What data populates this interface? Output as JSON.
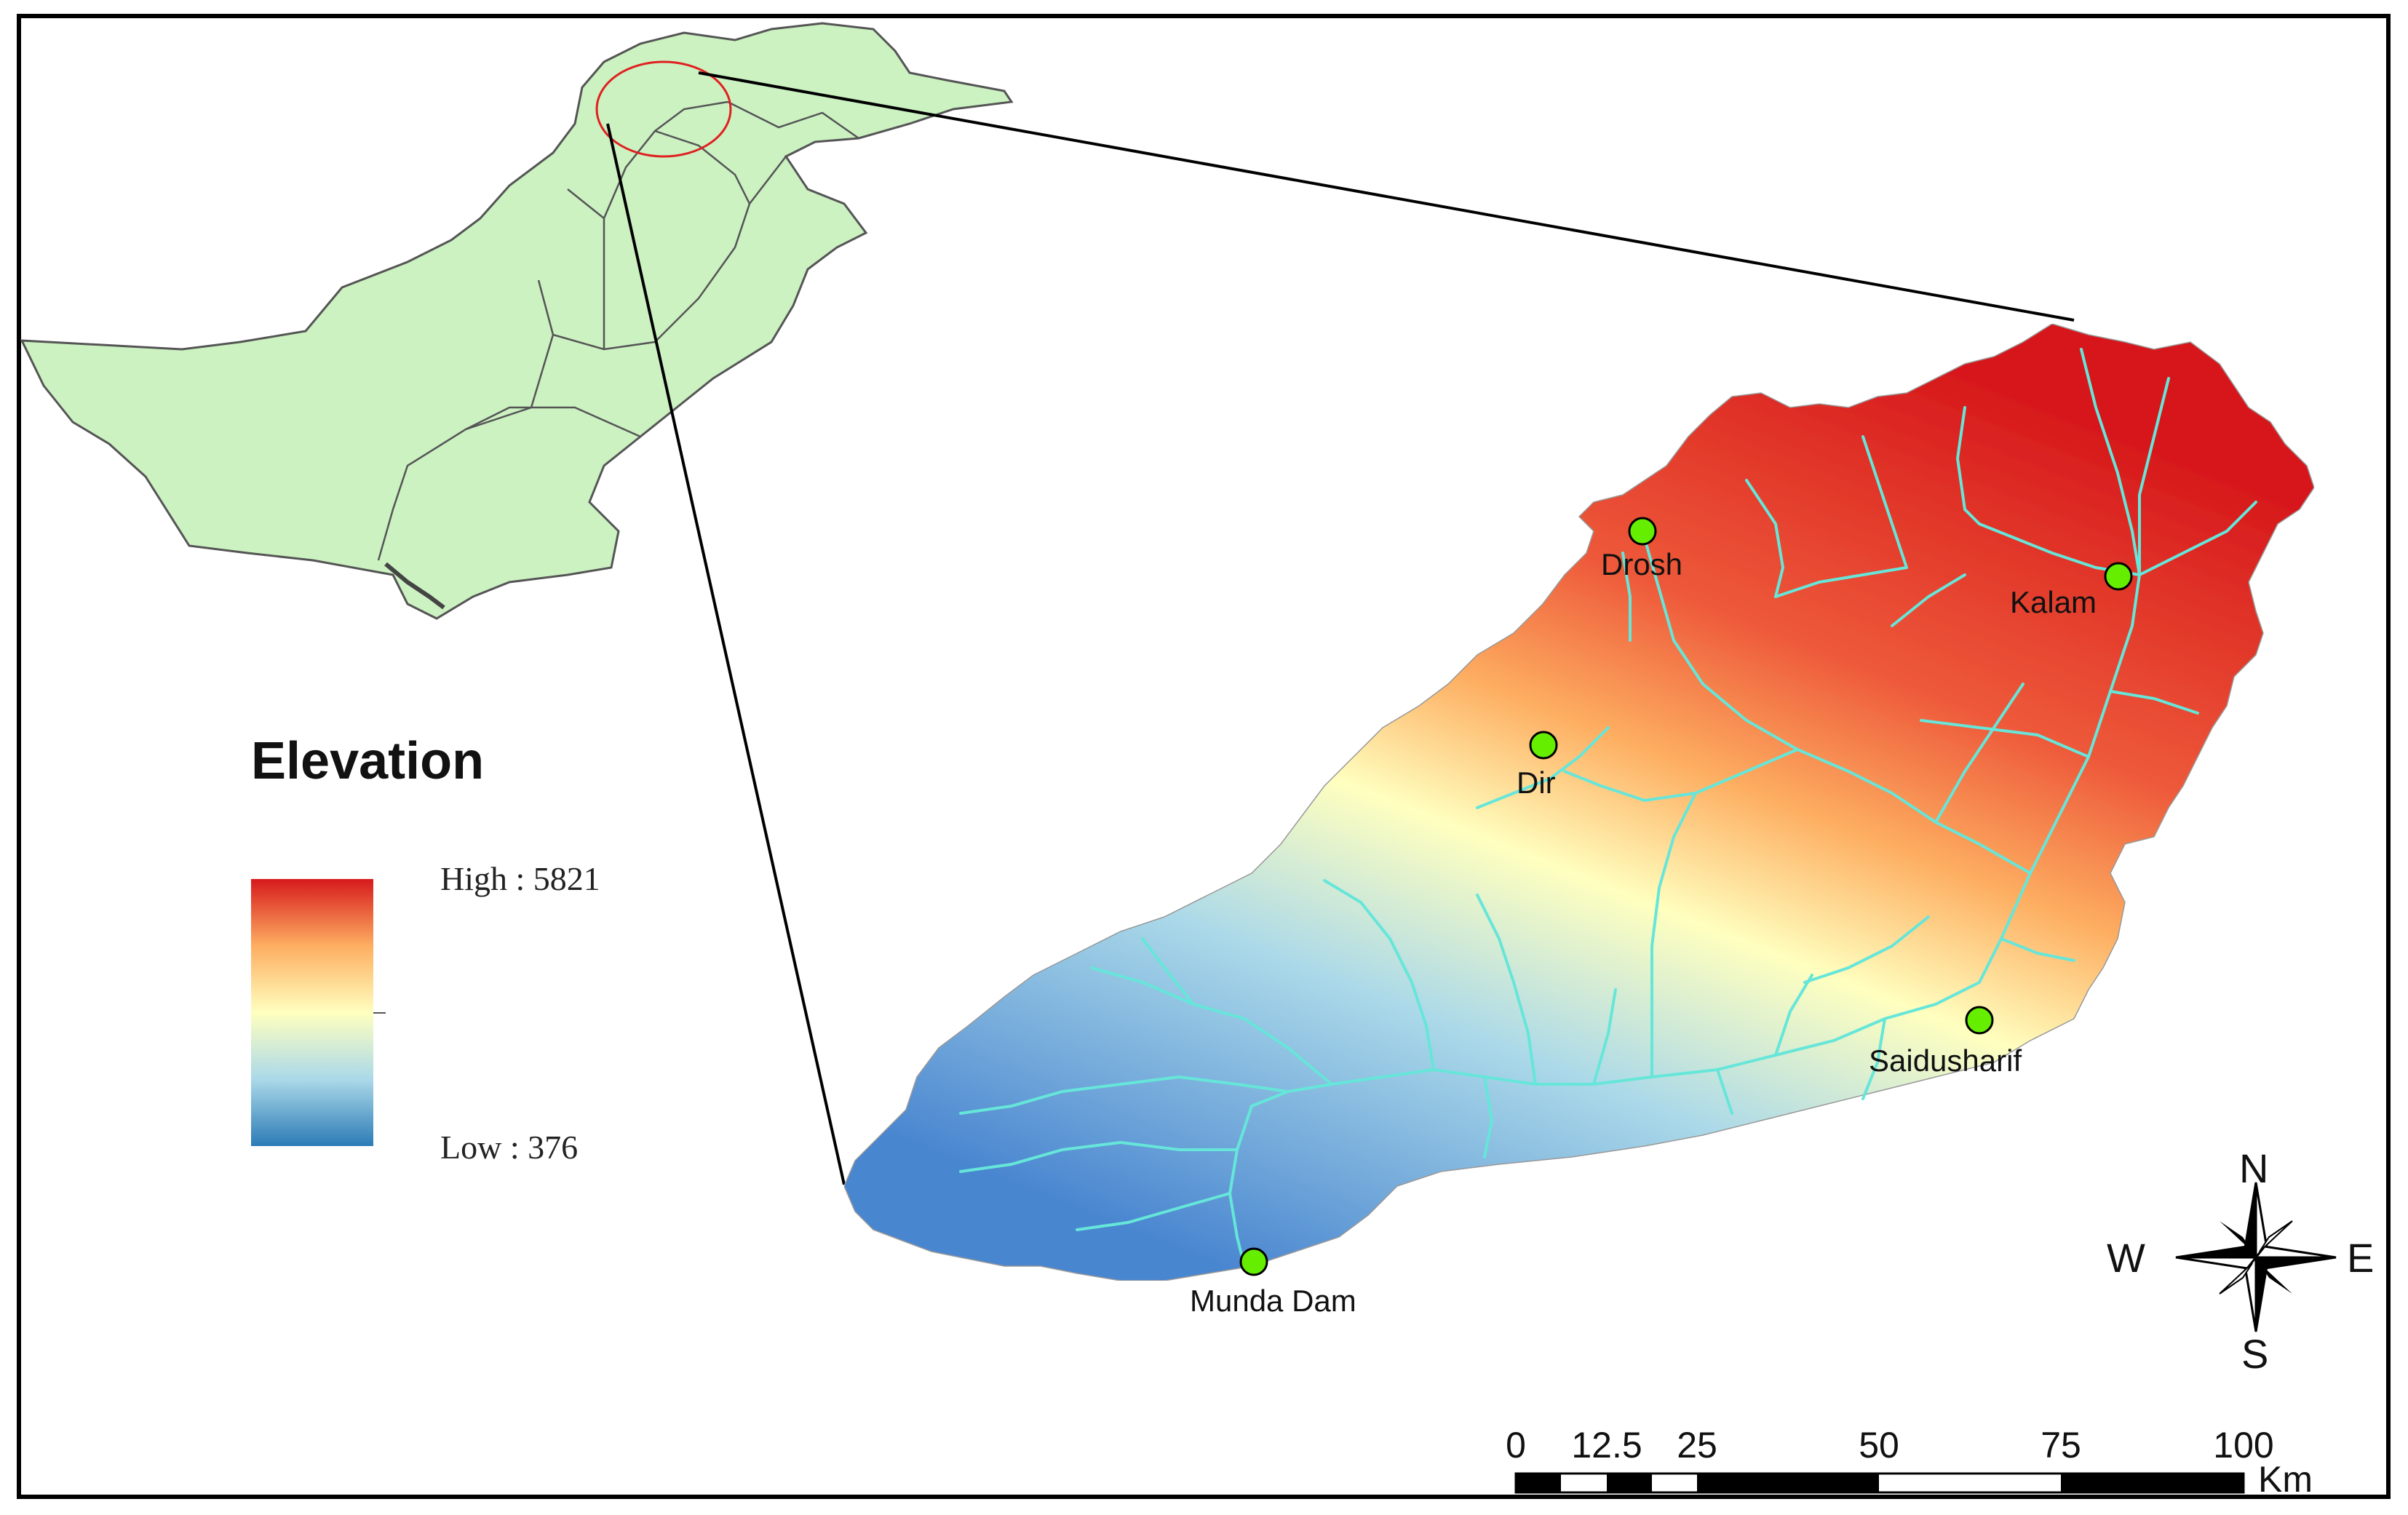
{
  "legend": {
    "title": "Elevation",
    "high_label": "High : 5821",
    "low_label": "Low : 376",
    "gradient_colors": [
      "#d7191c",
      "#fdae61",
      "#ffffbf",
      "#abd9e9",
      "#2c7bb6"
    ]
  },
  "locations": [
    {
      "name": "Drosh"
    },
    {
      "name": "Kalam"
    },
    {
      "name": "Dir"
    },
    {
      "name": "Saidusharif"
    },
    {
      "name": "Munda Dam"
    }
  ],
  "compass": {
    "north": "N",
    "south": "S",
    "east": "E",
    "west": "W"
  },
  "scale_bar": {
    "labels": [
      "0",
      "12.5",
      "25",
      "50",
      "75",
      "100"
    ],
    "unit": "Km"
  },
  "colors": {
    "country_fill": "#ccf2c2",
    "country_stroke": "#555555",
    "river": "#66e6d9",
    "site_marker": "#66ee00",
    "highlight_circle": "#e02020"
  },
  "icons": {
    "compass": "north-arrow-compass-icon",
    "site": "green-circle-site-icon"
  }
}
